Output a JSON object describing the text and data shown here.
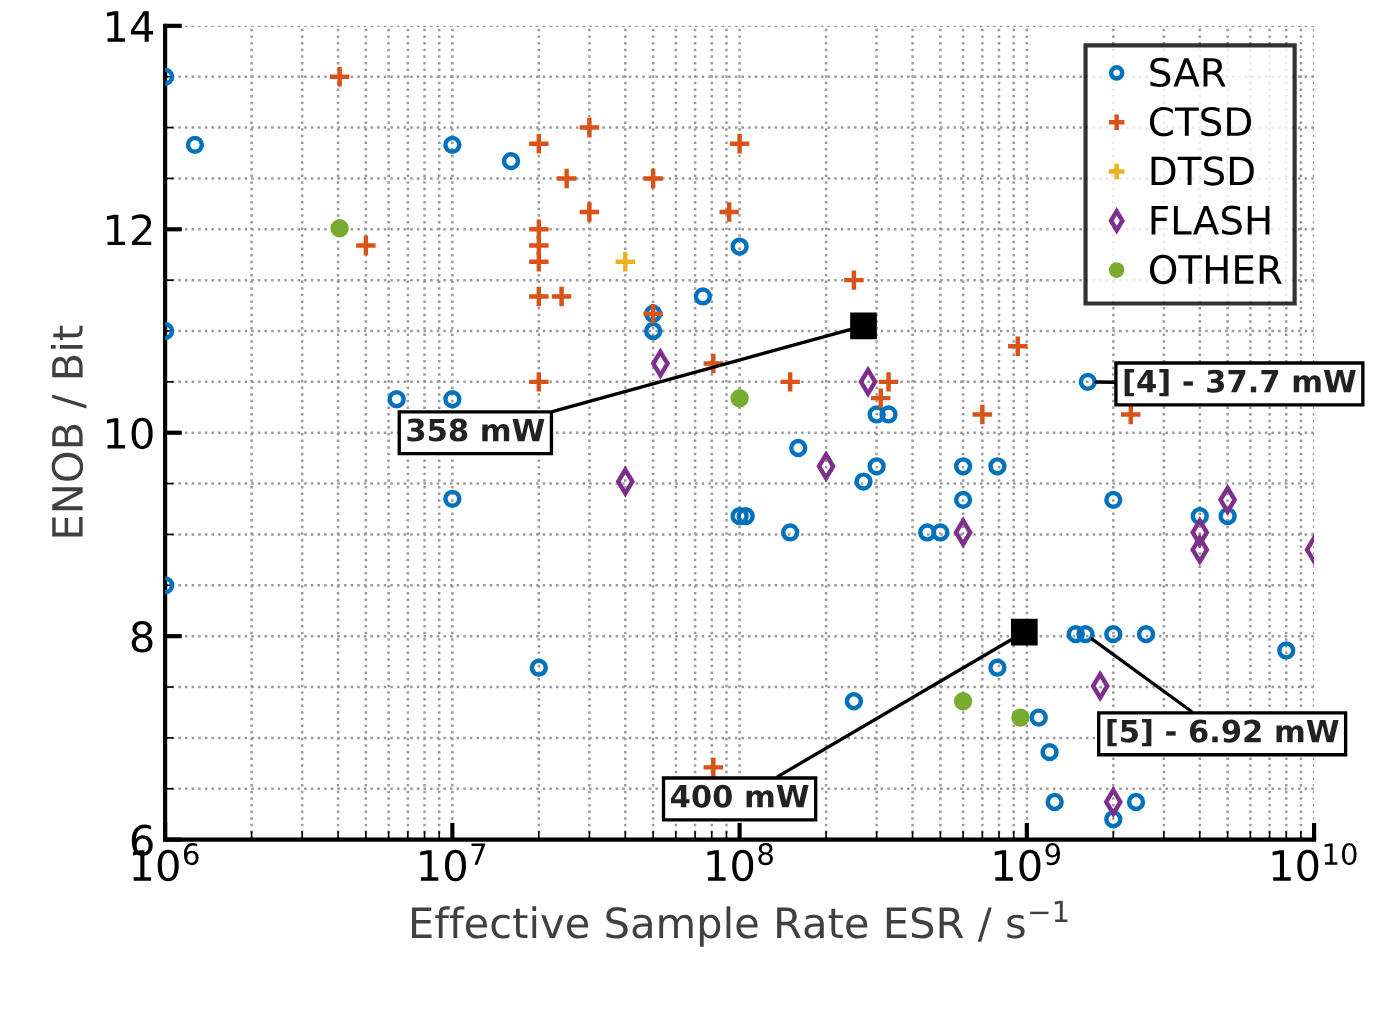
{
  "chart_data": {
    "type": "scatter",
    "xlabel": "Effective Sample Rate ESR / s$^{−1}$",
    "ylabel": "ENOB / Bit",
    "log": "x",
    "xlim": [
      1000000,
      10000000000
    ],
    "xticks": [
      {
        "value": 1000000,
        "label": "10$^{6}$"
      },
      {
        "value": 10000000,
        "label": "10$^{7}$"
      },
      {
        "value": 100000000,
        "label": "10$^{8}$"
      },
      {
        "value": 1000000000,
        "label": "10$^{9}$"
      },
      {
        "value": 10000000000,
        "label": "10$^{10}$"
      }
    ],
    "ylim": [
      6,
      14
    ],
    "yticks": [
      6,
      8,
      10,
      12,
      14
    ],
    "grid": true,
    "legend": "top right",
    "series": [
      {
        "name": "SAR",
        "color": "#0072bd",
        "marker": "circle",
        "x": [
          1000000,
          1270000,
          1000000,
          1000000,
          10000000,
          16000000,
          6400000,
          10000000,
          10000000,
          20000000,
          74500000,
          100000000,
          50000000,
          50000000,
          100000000,
          105000000,
          1630000000,
          300000000,
          330000000,
          160000000,
          300000000,
          270000000,
          600000000,
          790000000,
          600000000,
          150000000,
          450000000,
          500000000,
          2000000000,
          4000000000,
          5000000000,
          1480000000,
          1600000000,
          2000000000,
          2600000000,
          8000000000,
          790000000,
          250000000,
          1100000000,
          1200000000,
          1250000000,
          2000000000,
          2400000000
        ],
        "values": [
          13.5,
          12.83,
          11.0,
          8.5,
          12.83,
          12.67,
          10.33,
          10.33,
          9.35,
          7.69,
          11.34,
          11.83,
          11.17,
          11.0,
          9.18,
          9.18,
          10.5,
          10.18,
          10.18,
          9.85,
          9.67,
          9.52,
          9.67,
          9.67,
          9.34,
          9.02,
          9.02,
          9.02,
          9.34,
          9.18,
          9.18,
          8.02,
          8.02,
          8.02,
          8.02,
          7.86,
          7.69,
          7.36,
          7.2,
          6.86,
          6.37,
          6.2,
          6.37
        ]
      },
      {
        "name": "CTSD",
        "color": "#d95319",
        "marker": "cross",
        "x": [
          4050000,
          5000000,
          20000000,
          20000000,
          20000000,
          20000000,
          20000000,
          24000000,
          20000000,
          25000000,
          30000000,
          30000000,
          50000000,
          50000000,
          81000000,
          92000000,
          100000000,
          81000000,
          250000000,
          150000000,
          330000000,
          310000000,
          930000000,
          700000000,
          2300000000
        ],
        "values": [
          13.5,
          11.84,
          12.84,
          12.0,
          11.84,
          11.68,
          11.34,
          11.34,
          10.5,
          12.5,
          13.0,
          12.17,
          12.5,
          11.17,
          10.68,
          12.17,
          12.84,
          6.71,
          11.5,
          10.5,
          10.5,
          10.34,
          10.85,
          10.18,
          10.18
        ]
      },
      {
        "name": "DTSD",
        "color": "#edb120",
        "marker": "cross",
        "x": [
          40000000
        ],
        "values": [
          11.68
        ]
      },
      {
        "name": "FLASH",
        "color": "#7e2f8e",
        "marker": "diamond",
        "x": [
          53000000,
          40000000,
          280000000,
          200000000,
          600000000,
          5000000000,
          4000000000,
          4000000000,
          10000000000,
          1800000000,
          2000000000
        ],
        "values": [
          10.68,
          9.52,
          10.5,
          9.67,
          9.02,
          9.34,
          9.02,
          8.85,
          8.85,
          7.51,
          6.37
        ]
      },
      {
        "name": "OTHER",
        "color": "#77ac30",
        "marker": "circle",
        "x": [
          4050000,
          100000000,
          600000000,
          950000000
        ],
        "values": [
          12.01,
          10.34,
          7.36,
          7.2
        ]
      },
      {
        "color": "#000000",
        "marker": "square",
        "x": [
          270000000,
          980000000
        ],
        "values": [
          11.05,
          8.04
        ]
      }
    ],
    "annotations": [
      {
        "text": "358 mW",
        "x": 270000000,
        "y": 11.05
      },
      {
        "text": "400 mW",
        "x": 980000000,
        "y": 8.04
      },
      {
        "text": "[4] - 37.7 mW",
        "x": 1630000000,
        "y": 10.5
      },
      {
        "text": "[5] - 6.92 mW",
        "x": 1600000000,
        "y": 8.02
      }
    ]
  }
}
